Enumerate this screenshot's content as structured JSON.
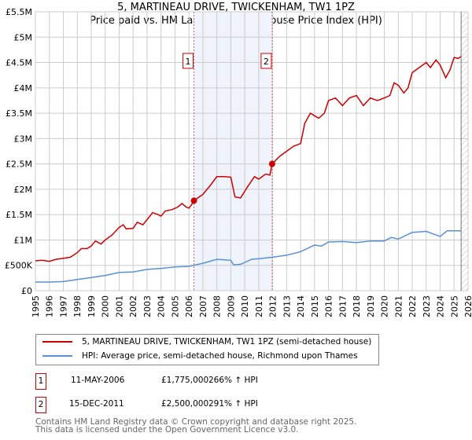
{
  "chart_data": {
    "type": "line",
    "title": "5, MARTINEAU DRIVE, TWICKENHAM, TW1 1PZ",
    "subtitle": "Price paid vs. HM Land Registry's House Price Index (HPI)",
    "xlim": [
      1995,
      2026
    ],
    "ylim": [
      0,
      5500000
    ],
    "y_ticks": [
      {
        "v": 0,
        "label": "£0"
      },
      {
        "v": 500000,
        "label": "£500K"
      },
      {
        "v": 1000000,
        "label": "£1M"
      },
      {
        "v": 1500000,
        "label": "£1.5M"
      },
      {
        "v": 2000000,
        "label": "£2M"
      },
      {
        "v": 2500000,
        "label": "£2.5M"
      },
      {
        "v": 3000000,
        "label": "£3M"
      },
      {
        "v": 3500000,
        "label": "£3.5M"
      },
      {
        "v": 4000000,
        "label": "£4M"
      },
      {
        "v": 4500000,
        "label": "£4.5M"
      },
      {
        "v": 5000000,
        "label": "£5M"
      },
      {
        "v": 5500000,
        "label": "£5.5M"
      }
    ],
    "x_ticks": [
      "1995",
      "1996",
      "1997",
      "1998",
      "1999",
      "2000",
      "2001",
      "2002",
      "2003",
      "2004",
      "2005",
      "2006",
      "2007",
      "2008",
      "2009",
      "2010",
      "2011",
      "2012",
      "2013",
      "2014",
      "2015",
      "2016",
      "2017",
      "2018",
      "2019",
      "2020",
      "2021",
      "2022",
      "2023",
      "2024",
      "2025",
      "2026"
    ],
    "grid": true,
    "shaded_range": [
      2006.36,
      2011.96
    ],
    "forecast_hatch_from": 2025.5,
    "series": [
      {
        "name": "5, MARTINEAU DRIVE, TWICKENHAM, TW1 1PZ (semi-detached house)",
        "color": "#cc0000",
        "x": [
          1995,
          1995.5,
          1996,
          1996.5,
          1997,
          1997.5,
          1998,
          1998.3,
          1998.7,
          1999,
          1999.3,
          1999.7,
          2000,
          2000.5,
          2001,
          2001.3,
          2001.5,
          2002,
          2002.3,
          2002.7,
          2003,
          2003.4,
          2003.8,
          2004,
          2004.3,
          2004.8,
          2005.2,
          2005.5,
          2005.8,
          2006,
          2006.2,
          2006.36,
          2007,
          2007.6,
          2008,
          2008.5,
          2009,
          2009.3,
          2009.7,
          2010.2,
          2010.7,
          2011,
          2011.5,
          2011.8,
          2011.96,
          2012.5,
          2013,
          2013.5,
          2014,
          2014.3,
          2014.7,
          2015,
          2015.3,
          2015.7,
          2016,
          2016.5,
          2017,
          2017.5,
          2018,
          2018.5,
          2019,
          2019.5,
          2020,
          2020.4,
          2020.7,
          2021,
          2021.4,
          2021.7,
          2022,
          2022.5,
          2023,
          2023.3,
          2023.7,
          2024,
          2024.4,
          2024.7,
          2025,
          2025.3,
          2025.5
        ],
        "y": [
          590000,
          600000,
          580000,
          620000,
          640000,
          660000,
          750000,
          830000,
          830000,
          880000,
          980000,
          920000,
          1000000,
          1100000,
          1250000,
          1300000,
          1220000,
          1230000,
          1350000,
          1300000,
          1400000,
          1540000,
          1500000,
          1470000,
          1570000,
          1600000,
          1650000,
          1720000,
          1650000,
          1630000,
          1700000,
          1775000,
          1900000,
          2100000,
          2250000,
          2250000,
          2240000,
          1850000,
          1830000,
          2050000,
          2250000,
          2200000,
          2300000,
          2280000,
          2500000,
          2650000,
          2750000,
          2850000,
          2900000,
          3300000,
          3500000,
          3450000,
          3400000,
          3500000,
          3750000,
          3800000,
          3650000,
          3800000,
          3850000,
          3650000,
          3800000,
          3750000,
          3800000,
          3850000,
          4100000,
          4050000,
          3900000,
          4000000,
          4300000,
          4400000,
          4500000,
          4400000,
          4550000,
          4450000,
          4200000,
          4350000,
          4600000,
          4580000,
          4620000
        ]
      },
      {
        "name": "HPI: Average price, semi-detached house, Richmond upon Thames",
        "color": "#5b8fd6",
        "x": [
          1995,
          1996,
          1997,
          1998,
          1999,
          2000,
          2001,
          2002,
          2003,
          2004,
          2005,
          2006,
          2007,
          2008,
          2009,
          2009.2,
          2009.7,
          2010.5,
          2011,
          2012,
          2013,
          2014,
          2015,
          2015.5,
          2016,
          2017,
          2018,
          2019,
          2020,
          2020.5,
          2021,
          2022,
          2023,
          2024,
          2024.5,
          2025.5
        ],
        "y": [
          170000,
          170000,
          180000,
          220000,
          260000,
          300000,
          360000,
          370000,
          420000,
          440000,
          470000,
          480000,
          540000,
          620000,
          600000,
          510000,
          520000,
          620000,
          630000,
          660000,
          700000,
          770000,
          900000,
          880000,
          960000,
          970000,
          950000,
          980000,
          980000,
          1050000,
          1020000,
          1150000,
          1170000,
          1070000,
          1180000,
          1180000
        ]
      }
    ],
    "sales": [
      {
        "label": "1",
        "x": 2006.36,
        "price": 1775000,
        "date": "11-MAY-2006",
        "price_text": "£1,775,000",
        "hpi": "266% ↑ HPI"
      },
      {
        "label": "2",
        "x": 2011.96,
        "price": 2500000,
        "date": "15-DEC-2011",
        "price_text": "£2,500,000",
        "hpi": "291% ↑ HPI"
      }
    ]
  },
  "footer": {
    "line1": "Contains HM Land Registry data © Crown copyright and database right 2025.",
    "line2": "This data is licensed under the Open Government Licence v3.0."
  }
}
